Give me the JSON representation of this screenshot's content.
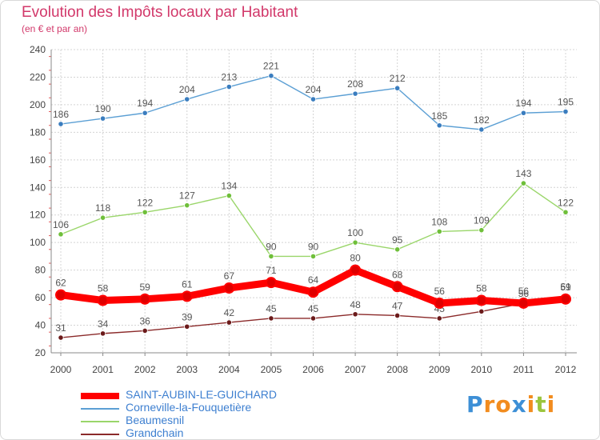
{
  "title": "Evolution des Impôts locaux par Habitant",
  "subtitle": "(en € et par an)",
  "logo": {
    "text": "Proxiti",
    "letters": [
      {
        "ch": "P",
        "color": "#3d8fd6"
      },
      {
        "ch": "r",
        "color": "#f28c1e"
      },
      {
        "ch": "o",
        "color": "#f28c1e"
      },
      {
        "ch": "x",
        "color": "#3d8fd6"
      },
      {
        "ch": "i",
        "color": "#f28c1e"
      },
      {
        "ch": "t",
        "color": "#9bc53d"
      },
      {
        "ch": "i",
        "color": "#f28c1e"
      }
    ]
  },
  "chart_data": {
    "type": "line",
    "title": "Evolution des Impôts locaux par Habitant",
    "subtitle": "(en € et par an)",
    "x": [
      "2000",
      "2001",
      "2002",
      "2003",
      "2004",
      "2005",
      "2006",
      "2007",
      "2008",
      "2009",
      "2010",
      "2011",
      "2012"
    ],
    "ylim": [
      20,
      240
    ],
    "yticks": [
      20,
      40,
      60,
      80,
      100,
      120,
      140,
      160,
      180,
      200,
      220,
      240
    ],
    "grid": true,
    "legend_position": "bottom-left",
    "series": [
      {
        "name": "Corneville-la-Fouquetière",
        "color": "#5b9fd4",
        "point_color": "#3a7dbf",
        "values": [
          186,
          190,
          194,
          204,
          213,
          221,
          204,
          208,
          212,
          185,
          182,
          194,
          195
        ],
        "labels": [
          "186",
          "190",
          "194",
          "204",
          "213",
          "221",
          "204",
          "208",
          "212",
          "185",
          "182",
          "194",
          "195"
        ]
      },
      {
        "name": "Beaumesnil",
        "color": "#9ad66a",
        "point_color": "#6fbf3a",
        "values": [
          106,
          118,
          122,
          127,
          134,
          90,
          90,
          100,
          95,
          108,
          109,
          143,
          122
        ],
        "labels": [
          "106",
          "118",
          "122",
          "127",
          "134",
          "90",
          "90",
          "100",
          "95",
          "108",
          "109",
          "143",
          "122"
        ]
      },
      {
        "name": "Grandchain",
        "color": "#8b2a2a",
        "point_color": "#6b1a1a",
        "values": [
          31,
          34,
          36,
          39,
          42,
          45,
          45,
          48,
          47,
          45,
          50,
          56,
          61
        ],
        "labels": [
          "31",
          "34",
          "36",
          "39",
          "42",
          "45",
          "45",
          "48",
          "47",
          "45",
          "50",
          "56",
          "61"
        ]
      },
      {
        "name": "SAINT-AUBIN-LE-GUICHARD",
        "color": "#ff0000",
        "point_color": "#e00000",
        "highlight": true,
        "values": [
          62,
          58,
          59,
          61,
          67,
          71,
          64,
          80,
          68,
          56,
          58,
          56,
          59
        ],
        "labels": [
          "62",
          "58",
          "59",
          "61",
          "67",
          "71",
          "64",
          "80",
          "68",
          "56",
          "58",
          "56",
          "59"
        ]
      }
    ],
    "legend": [
      {
        "name": "SAINT-AUBIN-LE-GUICHARD",
        "color": "#ff0000",
        "text_color": "#3d7fd0",
        "thick": true
      },
      {
        "name": "Corneville-la-Fouquetière",
        "color": "#5b9fd4",
        "text_color": "#3d7fd0",
        "thick": false
      },
      {
        "name": "Beaumesnil",
        "color": "#9ad66a",
        "text_color": "#3d7fd0",
        "thick": false
      },
      {
        "name": "Grandchain",
        "color": "#8b2a2a",
        "text_color": "#3d7fd0",
        "thick": false
      }
    ]
  }
}
